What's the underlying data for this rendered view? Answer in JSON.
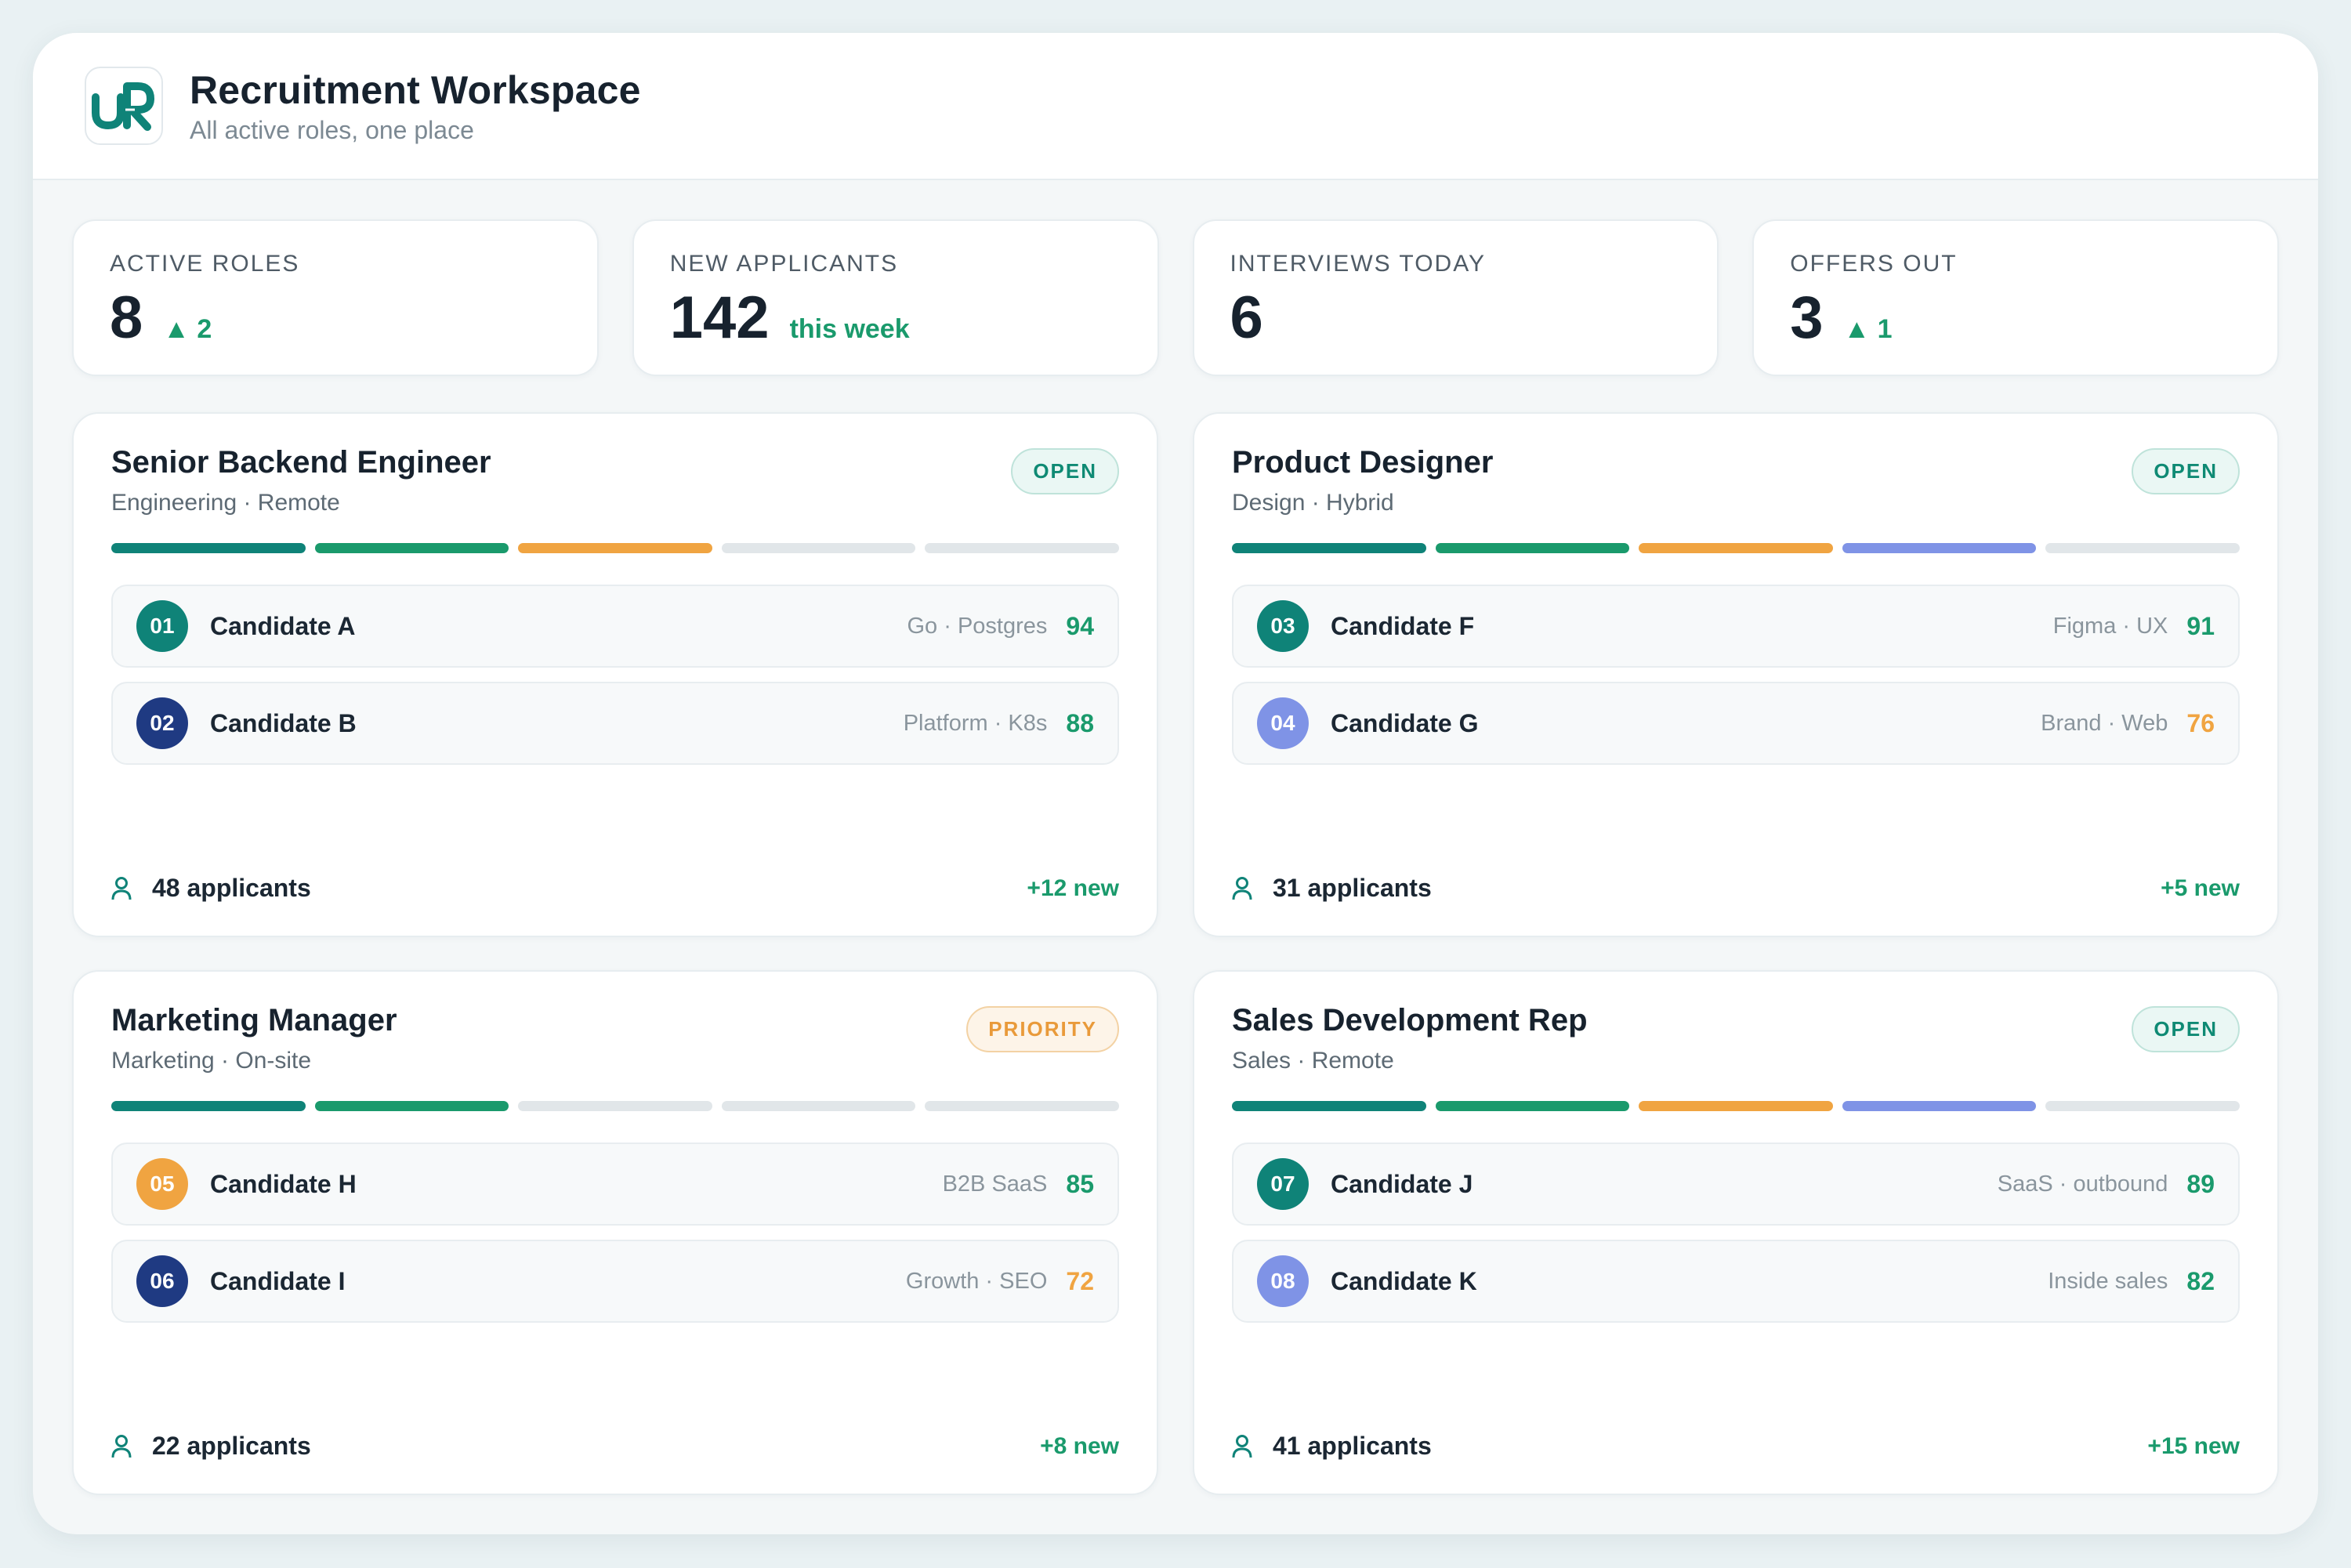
{
  "app": {
    "title": "Recruitment Workspace",
    "subtitle": "All active roles, one place",
    "logo_text": "UR"
  },
  "colors": {
    "teal": "#0f8378",
    "green": "#1a9a6c",
    "orange": "#f0a441",
    "lavender": "#7f93e6",
    "navy": "#1f3a82",
    "track": "#e1e6e9"
  },
  "stats": [
    {
      "label": "ACTIVE ROLES",
      "value": "8",
      "delta": "▲ 2"
    },
    {
      "label": "NEW APPLICANTS",
      "value": "142",
      "delta": "this week"
    },
    {
      "label": "INTERVIEWS TODAY",
      "value": "6",
      "delta": ""
    },
    {
      "label": "OFFERS OUT",
      "value": "3",
      "delta": "▲ 1"
    }
  ],
  "roles": [
    {
      "title": "Senior Backend Engineer",
      "meta": "Engineering · Remote",
      "badge": "OPEN",
      "stages": [
        "teal",
        "green",
        "orange",
        "track",
        "track"
      ],
      "candidates": [
        {
          "num": "01",
          "name": "Candidate A",
          "tags": "Go · Postgres",
          "score": "94",
          "num_color": "teal",
          "score_color": "green"
        },
        {
          "num": "02",
          "name": "Candidate B",
          "tags": "Platform · K8s",
          "score": "88",
          "num_color": "navy",
          "score_color": "green"
        }
      ],
      "applicants": "48 applicants",
      "new": "+12 new"
    },
    {
      "title": "Product Designer",
      "meta": "Design · Hybrid",
      "badge": "OPEN",
      "stages": [
        "teal",
        "green",
        "orange",
        "lavender",
        "track"
      ],
      "candidates": [
        {
          "num": "03",
          "name": "Candidate F",
          "tags": "Figma · UX",
          "score": "91",
          "num_color": "teal",
          "score_color": "green"
        },
        {
          "num": "04",
          "name": "Candidate G",
          "tags": "Brand · Web",
          "score": "76",
          "num_color": "lavender",
          "score_color": "orange"
        }
      ],
      "applicants": "31 applicants",
      "new": "+5 new"
    },
    {
      "title": "Marketing Manager",
      "meta": "Marketing · On-site",
      "badge": "PRIORITY",
      "stages": [
        "teal",
        "green",
        "track",
        "track",
        "track"
      ],
      "candidates": [
        {
          "num": "05",
          "name": "Candidate H",
          "tags": "B2B SaaS",
          "score": "85",
          "num_color": "orange",
          "score_color": "green"
        },
        {
          "num": "06",
          "name": "Candidate I",
          "tags": "Growth · SEO",
          "score": "72",
          "num_color": "navy",
          "score_color": "orange"
        }
      ],
      "applicants": "22 applicants",
      "new": "+8 new"
    },
    {
      "title": "Sales Development Rep",
      "meta": "Sales · Remote",
      "badge": "OPEN",
      "stages": [
        "teal",
        "green",
        "orange",
        "lavender",
        "track"
      ],
      "candidates": [
        {
          "num": "07",
          "name": "Candidate J",
          "tags": "SaaS · outbound",
          "score": "89",
          "num_color": "teal",
          "score_color": "green"
        },
        {
          "num": "08",
          "name": "Candidate K",
          "tags": "Inside sales",
          "score": "82",
          "num_color": "lavender",
          "score_color": "green"
        }
      ],
      "applicants": "41 applicants",
      "new": "+15 new"
    }
  ]
}
